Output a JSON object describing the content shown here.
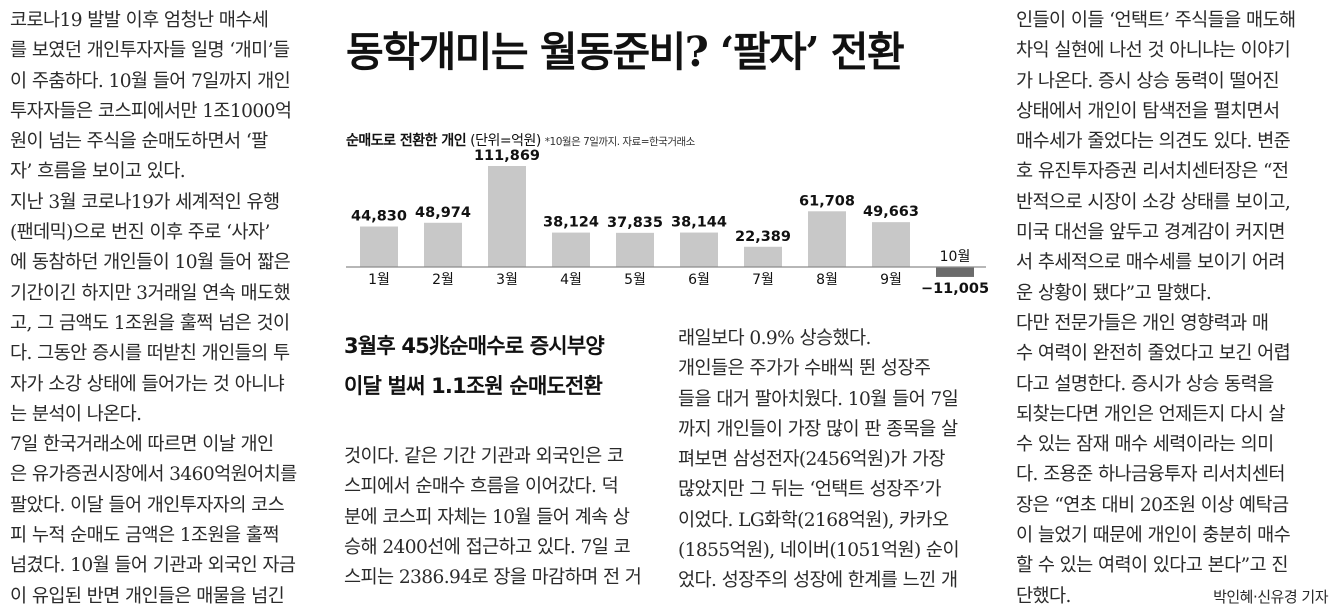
{
  "headline": "동학개미는 월동준비? ‘팔자’ 전환",
  "chart_title": {
    "bold": "순매도로 전환한 개인",
    "unit": " (단위=억원)",
    "note": "*10월은 7일까지. 자료=한국거래소"
  },
  "chart_data": {
    "type": "bar",
    "categories": [
      "1월",
      "2월",
      "3월",
      "4월",
      "5월",
      "6월",
      "7월",
      "8월",
      "9월",
      "10월"
    ],
    "values": [
      44830,
      48974,
      111869,
      38124,
      37835,
      38144,
      22389,
      61708,
      49663,
      -11005
    ],
    "value_labels": [
      "44,830",
      "48,974",
      "111,869",
      "38,124",
      "37,835",
      "38,144",
      "22,389",
      "61,708",
      "49,663",
      "−11,005"
    ],
    "colors": {
      "positive": "#c8c8c8",
      "negative": "#6b6b6b",
      "baseline": "#8c8c8c"
    }
  },
  "subheads": [
    "3월후 45兆순매수로 증시부양",
    "이달 벌써 1.1조원 순매도전환"
  ],
  "columns": {
    "col1": [
      "   코로나19 발발 이후 엄청난 매수세",
      "를 보였던 개인투자자들 일명 ‘개미’들",
      "이 주춤하다. 10월 들어 7일까지 개인",
      "투자자들은 코스피에서만 1조1000억",
      "원이 넘는 주식을 순매도하면서 ‘팔",
      "자’ 흐름을 보이고 있다.",
      "   지난 3월 코로나19가 세계적인 유행",
      "(팬데믹)으로 번진 이후 주로 ‘사자’",
      "에 동참하던 개인들이 10월 들어 짧은",
      "기간이긴 하지만 3거래일 연속 매도했",
      "고, 그 금액도 1조원을 훌쩍 넘은 것이",
      "다. 그동안 증시를 떠받친 개인들의 투",
      "자가 소강 상태에 들어가는 것 아니냐",
      "는 분석이 나온다.",
      "   7일 한국거래소에 따르면 이날 개인",
      "은 유가증권시장에서 3460억원어치를",
      "팔았다. 이달 들어 개인투자자의 코스",
      "피 누적 순매도 금액은 1조원을 훌쩍",
      "넘겼다. 10월 들어 기관과 외국인 자금",
      "이 유입된 반면 개인들은 매물을 넘긴"
    ],
    "col3": [
      "것이다. 같은 기간 기관과 외국인은 코",
      "스피에서 순매수 흐름을 이어갔다. 덕",
      "분에 코스피 자체는 10월 들어 계속 상",
      "승해 2400선에 접근하고 있다. 7일 코",
      "스피는 2386.94로 장을 마감하며 전 거"
    ],
    "col4": [
      "래일보다 0.9% 상승했다.",
      "   개인들은 주가가 수배씩 뛴 성장주",
      "들을 대거 팔아치웠다. 10월 들어 7일",
      "까지 개인들이 가장 많이 판 종목을 살",
      "펴보면 삼성전자(2456억원)가 가장",
      "많았지만 그 뒤는 ‘언택트 성장주’가",
      "이었다. LG화학(2168억원), 카카오",
      "(1855억원), 네이버(1051억원) 순이",
      "었다. 성장주의 성장에 한계를 느낀 개"
    ],
    "col5": [
      "인들이 이들 ‘언택트’ 주식들을 매도해",
      "차익 실현에 나선 것 아니냐는 이야기",
      "가 나온다. 증시 상승 동력이 떨어진",
      "상태에서 개인이 탐색전을 펼치면서",
      "매수세가 줄었다는 의견도 있다. 변준",
      "호 유진투자증권 리서치센터장은 “전",
      "반적으로 시장이 소강 상태를 보이고,",
      "미국 대선을 앞두고 경계감이 커지면",
      "서 추세적으로 매수세를 보이기 어려",
      "운 상황이 됐다”고 말했다.",
      "   다만 전문가들은 개인 영향력과 매",
      "수 여력이 완전히 줄었다고 보긴 어렵",
      "다고 설명한다. 증시가 상승 동력을",
      "되찾는다면 개인은 언제든지 다시 살",
      "수 있는 잠재 매수 세력이라는 의미",
      "다. 조용준 하나금융투자 리서치센터",
      "장은 “연초 대비 20조원 이상 예탁금",
      "이 늘었기 때문에 개인이 충분히 매수",
      "할 수 있는 여력이 있다고 본다”고 진",
      "단했다."
    ]
  },
  "byline": "박인혜·신유경 기자"
}
